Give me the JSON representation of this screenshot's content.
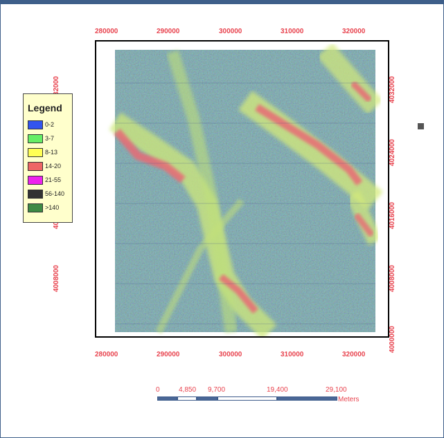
{
  "map": {
    "x_ticks": [
      "280000",
      "290000",
      "300000",
      "310000",
      "320000"
    ],
    "y_ticks": [
      "4032000",
      "4024000",
      "4016000",
      "4008000",
      "4000000"
    ],
    "colors": {
      "frame": "#3e5f8a",
      "tick_label": "#e8434e",
      "legend_bg": "#ffffcc"
    }
  },
  "legend": {
    "title": "Legend",
    "items": [
      {
        "label": "0-2",
        "color": "#3355ee"
      },
      {
        "label": "3-7",
        "color": "#66ee66"
      },
      {
        "label": "8-13",
        "color": "#ffff55"
      },
      {
        "label": "14-20",
        "color": "#ee6666"
      },
      {
        "label": "21-55",
        "color": "#ee22ee"
      },
      {
        "label": "56-140",
        "color": "#333333"
      },
      {
        "label": ">140",
        "color": "#3d8a45"
      }
    ]
  },
  "scale_bar": {
    "labels": [
      "0",
      "4,850",
      "9,700",
      "19,400",
      "29,100"
    ],
    "unit": "Meters",
    "fill_color": "#4a6796"
  }
}
